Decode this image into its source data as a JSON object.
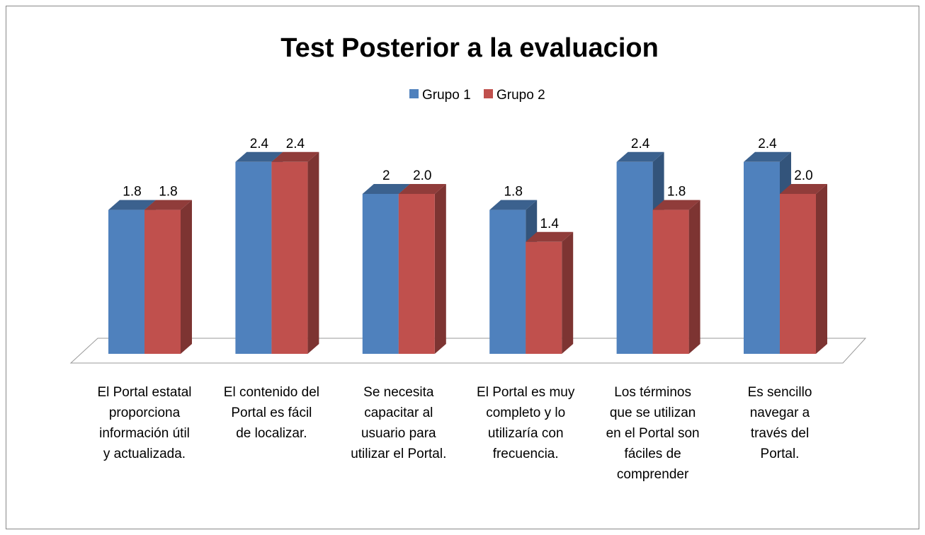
{
  "chart_data": {
    "type": "bar3d",
    "title": "Test Posterior a la evaluacion",
    "categories": [
      "El Portal estatal proporciona información útil y actualizada.",
      "El contenido del Portal es fácil de localizar.",
      "Se necesita capacitar al usuario para utilizar el Portal.",
      "El Portal es muy completo y lo utilizaría con frecuencia.",
      "Los términos que se utilizan en el Portal son fáciles de comprender",
      "Es sencillo navegar a través del Portal."
    ],
    "series": [
      {
        "name": "Grupo 1",
        "color": "#4f81bd",
        "values": [
          1.8,
          2.4,
          2,
          1.8,
          2.4,
          2.4
        ],
        "value_labels": [
          "1.8",
          "2.4",
          "2",
          "1.8",
          "2.4",
          "2.4"
        ]
      },
      {
        "name": "Grupo 2",
        "color": "#c0504d",
        "values": [
          1.8,
          2.4,
          2.0,
          1.4,
          1.8,
          2.0
        ],
        "value_labels": [
          "1.8",
          "2.4",
          "2.0",
          "1.4",
          "1.8",
          "2.0"
        ]
      }
    ],
    "ylim": [
      0,
      3
    ],
    "legend": "top"
  }
}
